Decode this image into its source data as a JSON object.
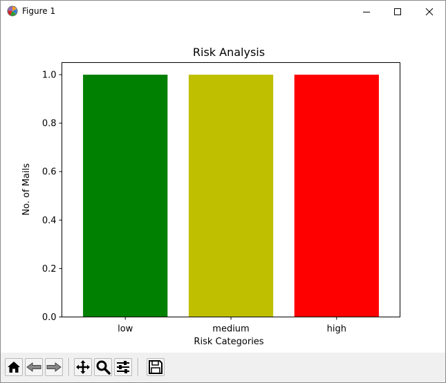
{
  "window": {
    "title": "Figure 1"
  },
  "toolbar": {
    "buttons": [
      {
        "name": "home-button",
        "icon": "home-icon"
      },
      {
        "name": "back-button",
        "icon": "back-arrow-icon"
      },
      {
        "name": "forward-button",
        "icon": "forward-arrow-icon"
      },
      {
        "name": "pan-button",
        "icon": "move-icon"
      },
      {
        "name": "zoom-button",
        "icon": "magnifier-icon"
      },
      {
        "name": "configure-subplots-button",
        "icon": "sliders-icon"
      },
      {
        "name": "save-button",
        "icon": "floppy-disk-icon"
      }
    ]
  },
  "chart_data": {
    "type": "bar",
    "title": "Risk Analysis",
    "xlabel": "Risk Categories",
    "ylabel": "No. of Mails",
    "categories": [
      "low",
      "medium",
      "high"
    ],
    "values": [
      1.0,
      1.0,
      1.0
    ],
    "colors": [
      "#008000",
      "#bfbf00",
      "#ff0000"
    ],
    "ylim": [
      0,
      1.05
    ],
    "yticks": [
      "0.0",
      "0.2",
      "0.4",
      "0.6",
      "0.8",
      "1.0"
    ],
    "grid": false,
    "legend": "none"
  }
}
